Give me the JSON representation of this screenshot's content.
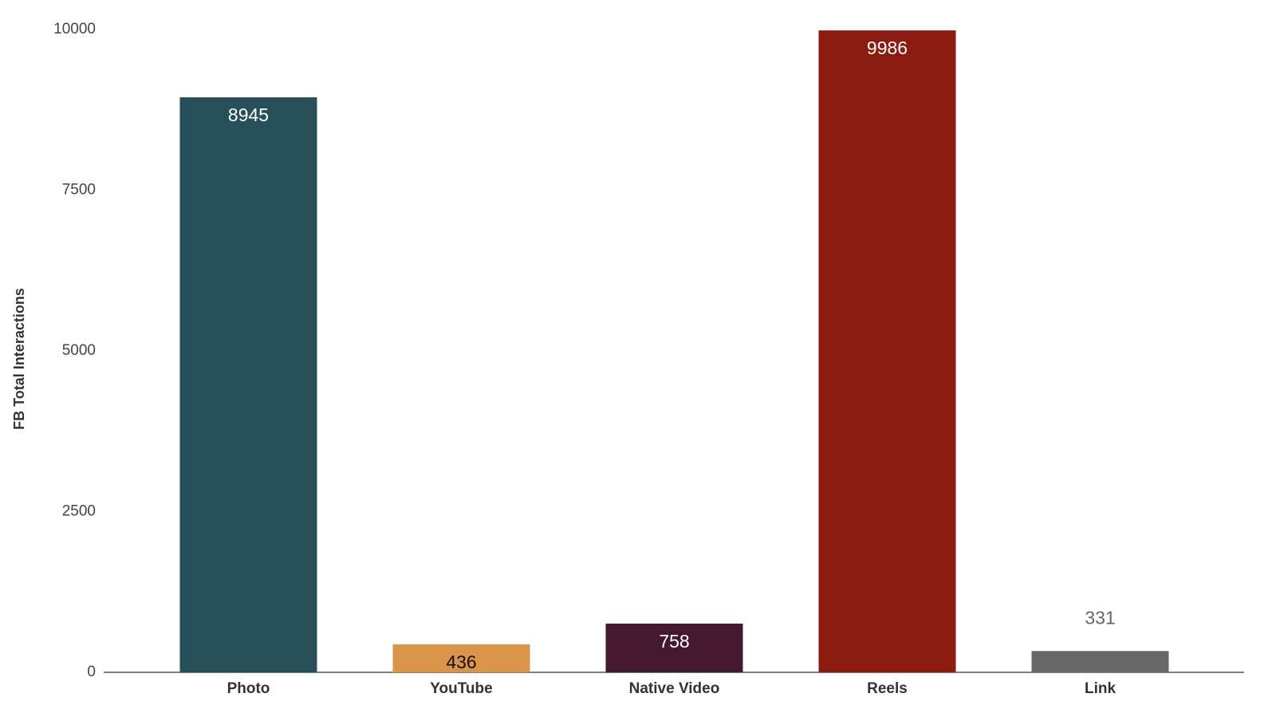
{
  "chart_data": {
    "type": "bar",
    "y_label": "FB Total Interactions",
    "categories": [
      "Photo",
      "YouTube",
      "Native Video",
      "Reels",
      "Link"
    ],
    "values": [
      8945,
      436,
      758,
      9986,
      331
    ],
    "colors": [
      "#264f5a",
      "#dc934a",
      "#44182f",
      "#8b1a10",
      "#676767"
    ],
    "label_colors": [
      "#ffffff",
      "#111111",
      "#ffffff",
      "#ffffff",
      "#666666"
    ],
    "ylim": [
      0,
      10000
    ],
    "yticks": [
      0,
      2500,
      5000,
      7500,
      10000
    ],
    "grid": false
  }
}
